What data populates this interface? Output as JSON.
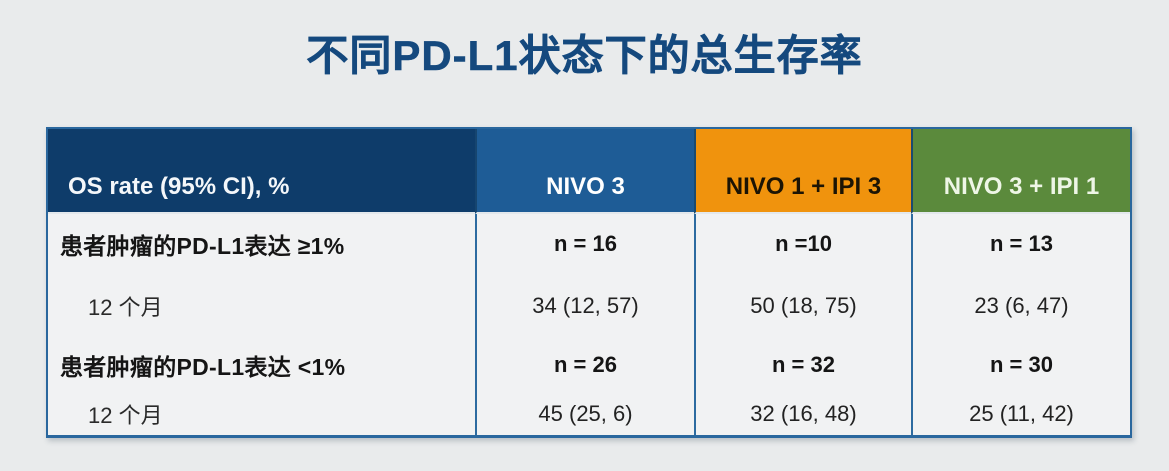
{
  "title": "不同PD-L1状态下的总生存率",
  "chart_data": {
    "type": "table",
    "title": "不同PD-L1状态下的总生存率",
    "columns": [
      "OS rate (95% CI), %",
      "NIVO 3",
      "NIVO 1 + IPI 3",
      "NIVO 3 + IPI 1"
    ],
    "rows": [
      [
        "患者肿瘤的PD-L1表达 ≥1%",
        "n = 16",
        "n =10",
        "n = 13"
      ],
      [
        "12 个月",
        "34 (12, 57)",
        "50 (18, 75)",
        "23 (6, 47)"
      ],
      [
        "患者肿瘤的PD-L1表达 <1%",
        "n = 26",
        "n = 32",
        "n = 30"
      ],
      [
        "12 个月",
        "45 (25, 6)",
        "32 (16, 48)",
        "25 (11, 42)"
      ]
    ],
    "notes": {
      "group_1": "患者肿瘤的PD-L1表达 ≥1%, 12 个月 OS rate (95% CI) %",
      "group_2": "患者肿瘤的PD-L1表达 <1%, 12 个月 OS rate (95% CI) %"
    }
  },
  "colors": {
    "title_text": "#15497e",
    "corner_header_bg": "#0e3c6a",
    "nivo3_bg": "#1e5c96",
    "nivo1_ipi3_bg": "#f0930d",
    "nivo3_ipi1_bg": "#5b8a3c",
    "grid_line": "#2d6ba0",
    "outer_border": "#2a679e",
    "page_bg": "#e9ebec",
    "table_bg": "#f1f2f3"
  }
}
